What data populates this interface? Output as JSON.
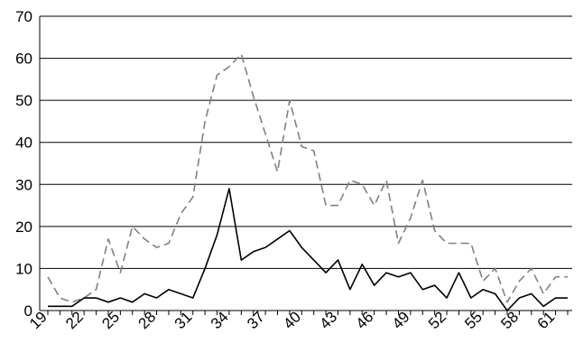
{
  "chart_data": {
    "type": "line",
    "title": "",
    "xlabel": "",
    "ylabel": "",
    "x": [
      19,
      20,
      21,
      22,
      23,
      24,
      25,
      26,
      27,
      28,
      29,
      30,
      31,
      32,
      33,
      34,
      35,
      36,
      37,
      38,
      39,
      40,
      41,
      42,
      43,
      44,
      45,
      46,
      47,
      48,
      49,
      50,
      51,
      52,
      53,
      54,
      55,
      56,
      57,
      58,
      59,
      60,
      61,
      62
    ],
    "x_tick_labels": [
      "19",
      "22",
      "25",
      "28",
      "31",
      "34",
      "37",
      "40",
      "43",
      "46",
      "49",
      "52",
      "55",
      "58",
      "61"
    ],
    "ylim": [
      0,
      70
    ],
    "y_ticks": [
      0,
      10,
      20,
      30,
      40,
      50,
      60,
      70
    ],
    "grid": "horizontal",
    "legend": "none",
    "series": [
      {
        "style": "dashed",
        "color": "#808080",
        "values": [
          8,
          3,
          2,
          3,
          5,
          17,
          9,
          20,
          17,
          15,
          16,
          23,
          27,
          45,
          56,
          58,
          61,
          51,
          42,
          33,
          50,
          39,
          38,
          25,
          25,
          31,
          30,
          25,
          31,
          16,
          22,
          31,
          19,
          16,
          16,
          16,
          7,
          10,
          2,
          7,
          10,
          4,
          8,
          8
        ]
      },
      {
        "style": "solid",
        "color": "#000000",
        "values": [
          1,
          1,
          1,
          3,
          3,
          2,
          3,
          2,
          4,
          3,
          5,
          4,
          3,
          10,
          18,
          29,
          12,
          14,
          15,
          17,
          19,
          15,
          12,
          9,
          12,
          5,
          11,
          6,
          9,
          8,
          9,
          5,
          6,
          3,
          9,
          3,
          5,
          4,
          0,
          3,
          4,
          1,
          3,
          3
        ]
      }
    ]
  }
}
